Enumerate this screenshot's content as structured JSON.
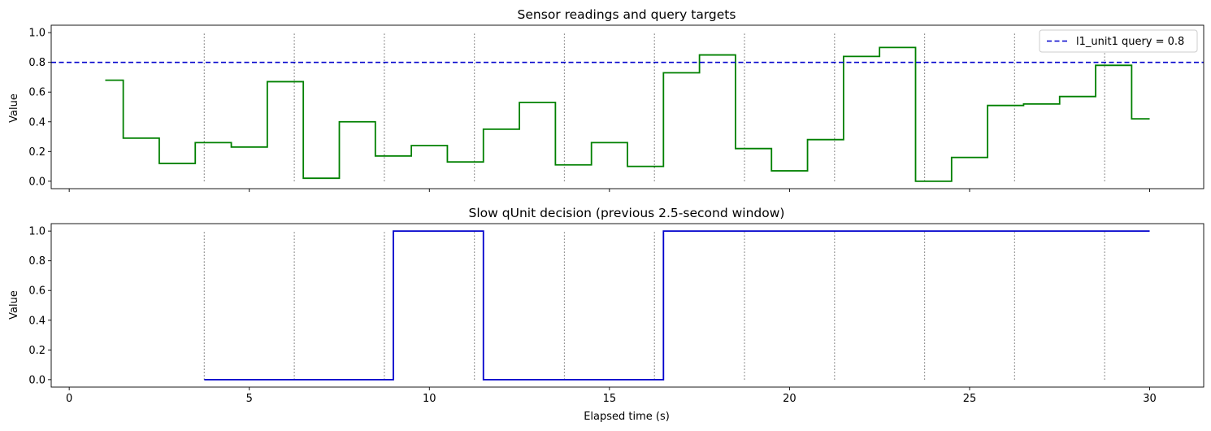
{
  "chart_data": [
    {
      "type": "line",
      "drawstyle": "steps-post",
      "title": "Sensor readings and query targets",
      "xlabel": "",
      "ylabel": "Value",
      "xlim": [
        -0.5,
        31.5
      ],
      "ylim": [
        -0.05,
        1.05
      ],
      "xticks": [
        0,
        5,
        10,
        15,
        20,
        25,
        30
      ],
      "yticks": [
        0.0,
        0.2,
        0.4,
        0.6,
        0.8,
        1.0
      ],
      "ytick_labels": [
        "0.0",
        "0.2",
        "0.4",
        "0.6",
        "0.8",
        "1.0"
      ],
      "legend_position": "top-right",
      "series": [
        {
          "color": "#008000",
          "x": [
            1.0,
            1.5,
            2.5,
            3.5,
            4.5,
            5.5,
            6.5,
            7.5,
            8.5,
            9.5,
            10.5,
            11.5,
            12.5,
            13.5,
            14.5,
            15.5,
            16.5,
            17.5,
            18.5,
            19.5,
            20.5,
            21.5,
            22.5,
            23.5,
            24.5,
            25.5,
            26.5,
            27.5,
            28.5,
            29.5,
            30.0
          ],
          "y": [
            0.68,
            0.29,
            0.12,
            0.26,
            0.23,
            0.67,
            0.02,
            0.4,
            0.17,
            0.24,
            0.13,
            0.35,
            0.53,
            0.11,
            0.26,
            0.1,
            0.73,
            0.85,
            0.22,
            0.07,
            0.28,
            0.84,
            0.9,
            0.0,
            0.16,
            0.51,
            0.52,
            0.57,
            0.78,
            0.42,
            0.42
          ]
        },
        {
          "name": "l1_unit1 query = 0.8",
          "kind": "hline",
          "y": 0.8,
          "color": "#0000cc",
          "dashed": true
        }
      ],
      "vlines": [
        3.75,
        6.25,
        8.75,
        11.25,
        13.75,
        16.25,
        18.75,
        21.25,
        23.75,
        26.25,
        28.75
      ],
      "vline_color": "#808080"
    },
    {
      "type": "line",
      "drawstyle": "steps-post",
      "title": "Slow qUnit decision (previous 2.5-second window)",
      "xlabel": "Elapsed time (s)",
      "ylabel": "Value",
      "xlim": [
        -0.5,
        31.5
      ],
      "ylim": [
        -0.05,
        1.05
      ],
      "xticks": [
        0,
        5,
        10,
        15,
        20,
        25,
        30
      ],
      "yticks": [
        0.0,
        0.2,
        0.4,
        0.6,
        0.8,
        1.0
      ],
      "ytick_labels": [
        "0.0",
        "0.2",
        "0.4",
        "0.6",
        "0.8",
        "1.0"
      ],
      "series": [
        {
          "color": "#0000cc",
          "x": [
            3.75,
            9.0,
            11.5,
            16.5,
            30.0
          ],
          "y": [
            0,
            1,
            0,
            1,
            1
          ]
        }
      ],
      "vlines": [
        3.75,
        6.25,
        8.75,
        11.25,
        13.75,
        16.25,
        18.75,
        21.25,
        23.75,
        26.25,
        28.75
      ],
      "vline_color": "#808080"
    }
  ]
}
